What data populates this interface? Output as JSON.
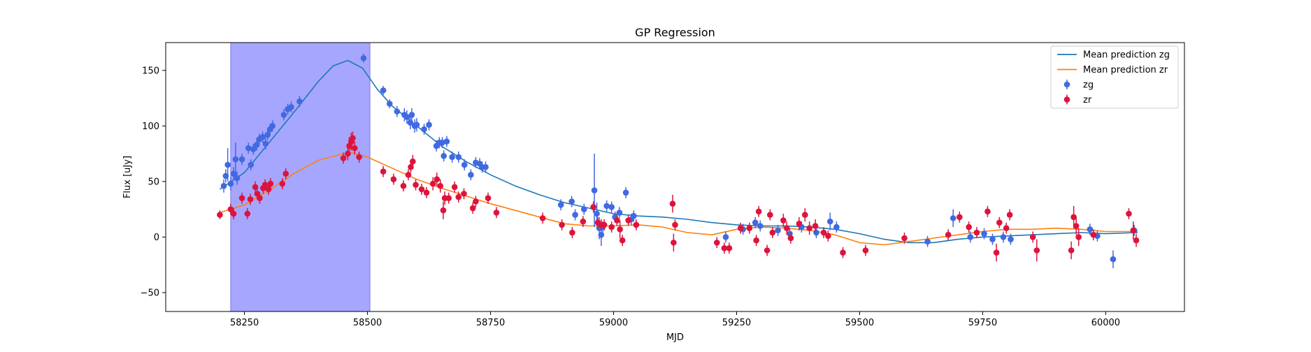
{
  "chart_data": {
    "type": "scatter",
    "title": "GP Regression",
    "xlabel": "MJD",
    "ylabel": "Flux [uJy]",
    "xlim": [
      58090,
      60160
    ],
    "ylim": [
      -67,
      175
    ],
    "xticks": [
      58250,
      58500,
      58750,
      59000,
      59250,
      59500,
      59750,
      60000
    ],
    "yticks": [
      -50,
      0,
      50,
      100,
      150
    ],
    "grid": false,
    "legend_position": "top-right",
    "highlight_band": {
      "x_start": 58222,
      "x_end": 58505,
      "color": "#a6a6ff"
    },
    "colors": {
      "zg_points": "#4169e1",
      "zr_points": "#dc143c",
      "zg_line": "#1f77b4",
      "zr_line": "#ff7f0e"
    },
    "series": [
      {
        "name": "Mean prediction zg",
        "kind": "line",
        "points": [
          [
            58200,
            43
          ],
          [
            58250,
            58
          ],
          [
            58300,
            85
          ],
          [
            58350,
            112
          ],
          [
            58400,
            140
          ],
          [
            58430,
            154
          ],
          [
            58460,
            159
          ],
          [
            58490,
            152
          ],
          [
            58520,
            133
          ],
          [
            58550,
            118
          ],
          [
            58600,
            100
          ],
          [
            58650,
            82
          ],
          [
            58700,
            68
          ],
          [
            58750,
            56
          ],
          [
            58800,
            46
          ],
          [
            58850,
            38
          ],
          [
            58900,
            31
          ],
          [
            58950,
            26
          ],
          [
            59000,
            21
          ],
          [
            59050,
            19
          ],
          [
            59100,
            18
          ],
          [
            59150,
            16
          ],
          [
            59200,
            13
          ],
          [
            59250,
            11
          ],
          [
            59300,
            10
          ],
          [
            59350,
            10
          ],
          [
            59400,
            9
          ],
          [
            59450,
            7
          ],
          [
            59500,
            3
          ],
          [
            59550,
            -2
          ],
          [
            59600,
            -5
          ],
          [
            59650,
            -5
          ],
          [
            59700,
            -2
          ],
          [
            59750,
            0
          ],
          [
            59800,
            1
          ],
          [
            59850,
            2
          ],
          [
            59900,
            3
          ],
          [
            59950,
            4
          ],
          [
            60000,
            3
          ],
          [
            60065,
            4
          ]
        ]
      },
      {
        "name": "Mean prediction zr",
        "kind": "line",
        "points": [
          [
            58200,
            22
          ],
          [
            58250,
            29
          ],
          [
            58300,
            42
          ],
          [
            58350,
            57
          ],
          [
            58400,
            69
          ],
          [
            58450,
            75
          ],
          [
            58470,
            76
          ],
          [
            58500,
            72
          ],
          [
            58550,
            62
          ],
          [
            58600,
            52
          ],
          [
            58650,
            44
          ],
          [
            58700,
            37
          ],
          [
            58750,
            30
          ],
          [
            58800,
            24
          ],
          [
            58850,
            18
          ],
          [
            58900,
            12
          ],
          [
            58950,
            10
          ],
          [
            59000,
            10
          ],
          [
            59050,
            11
          ],
          [
            59100,
            9
          ],
          [
            59150,
            4
          ],
          [
            59200,
            2
          ],
          [
            59250,
            7
          ],
          [
            59300,
            9
          ],
          [
            59350,
            8
          ],
          [
            59400,
            6
          ],
          [
            59450,
            2
          ],
          [
            59500,
            -5
          ],
          [
            59550,
            -7
          ],
          [
            59600,
            -4
          ],
          [
            59650,
            -1
          ],
          [
            59700,
            2
          ],
          [
            59750,
            5
          ],
          [
            59800,
            7
          ],
          [
            59850,
            7
          ],
          [
            59900,
            8
          ],
          [
            59950,
            7
          ],
          [
            60000,
            5
          ],
          [
            60065,
            5
          ]
        ]
      },
      {
        "name": "zg",
        "kind": "scatter",
        "points": [
          [
            58208,
            46,
            6
          ],
          [
            58212,
            55,
            6
          ],
          [
            58216,
            65,
            15
          ],
          [
            58222,
            48,
            6
          ],
          [
            58228,
            57,
            6
          ],
          [
            58232,
            70,
            15
          ],
          [
            58235,
            53,
            6
          ],
          [
            58245,
            70,
            5
          ],
          [
            58258,
            80,
            5
          ],
          [
            58263,
            65,
            5
          ],
          [
            58268,
            79,
            5
          ],
          [
            58275,
            83,
            5
          ],
          [
            58280,
            88,
            5
          ],
          [
            58287,
            90,
            5
          ],
          [
            58293,
            84,
            5
          ],
          [
            58297,
            92,
            5
          ],
          [
            58302,
            97,
            5
          ],
          [
            58307,
            100,
            5
          ],
          [
            58330,
            110,
            5
          ],
          [
            58338,
            115,
            5
          ],
          [
            58345,
            117,
            5
          ],
          [
            58362,
            122,
            5
          ],
          [
            58492,
            161,
            4
          ],
          [
            58532,
            132,
            4
          ],
          [
            58545,
            120,
            4
          ],
          [
            58560,
            113,
            5
          ],
          [
            58575,
            110,
            6
          ],
          [
            58580,
            108,
            6
          ],
          [
            58587,
            103,
            6
          ],
          [
            58590,
            110,
            6
          ],
          [
            58596,
            100,
            6
          ],
          [
            58600,
            101,
            6
          ],
          [
            58615,
            97,
            5
          ],
          [
            58625,
            101,
            5
          ],
          [
            58640,
            82,
            5
          ],
          [
            58646,
            85,
            5
          ],
          [
            58652,
            85,
            5
          ],
          [
            58661,
            86,
            5
          ],
          [
            58655,
            73,
            5
          ],
          [
            58672,
            72,
            5
          ],
          [
            58685,
            72,
            5
          ],
          [
            58697,
            65,
            5
          ],
          [
            58710,
            56,
            5
          ],
          [
            58720,
            67,
            5
          ],
          [
            58728,
            66,
            5
          ],
          [
            58733,
            63,
            5
          ],
          [
            58740,
            63,
            5
          ],
          [
            58893,
            29,
            5
          ],
          [
            58915,
            32,
            5
          ],
          [
            58922,
            20,
            5
          ],
          [
            58940,
            25,
            5
          ],
          [
            58961,
            42,
            33
          ],
          [
            58966,
            21,
            10
          ],
          [
            58971,
            8,
            10
          ],
          [
            58975,
            2,
            10
          ],
          [
            58978,
            9,
            5
          ],
          [
            58986,
            28,
            5
          ],
          [
            58996,
            27,
            5
          ],
          [
            59003,
            18,
            5
          ],
          [
            59012,
            22,
            5
          ],
          [
            59025,
            40,
            5
          ],
          [
            59036,
            16,
            5
          ],
          [
            59041,
            19,
            5
          ],
          [
            59228,
            0,
            5
          ],
          [
            59263,
            7,
            5
          ],
          [
            59288,
            13,
            5
          ],
          [
            59298,
            10,
            5
          ],
          [
            59334,
            6,
            5
          ],
          [
            59358,
            3,
            5
          ],
          [
            59382,
            9,
            5
          ],
          [
            59412,
            4,
            5
          ],
          [
            59440,
            14,
            8
          ],
          [
            59453,
            9,
            5
          ],
          [
            59638,
            -4,
            5
          ],
          [
            59690,
            17,
            8
          ],
          [
            59725,
            0,
            5
          ],
          [
            59753,
            3,
            5
          ],
          [
            59770,
            -2,
            5
          ],
          [
            59792,
            0,
            5
          ],
          [
            59807,
            -2,
            5
          ],
          [
            59968,
            7,
            5
          ],
          [
            59983,
            1,
            5
          ],
          [
            60015,
            -20,
            8
          ],
          [
            60058,
            6,
            5
          ]
        ]
      },
      {
        "name": "zr",
        "kind": "scatter",
        "points": [
          [
            58200,
            20,
            4
          ],
          [
            58222,
            25,
            5
          ],
          [
            58228,
            21,
            5
          ],
          [
            58245,
            35,
            5
          ],
          [
            58256,
            21,
            5
          ],
          [
            58262,
            34,
            5
          ],
          [
            58272,
            45,
            5
          ],
          [
            58276,
            39,
            5
          ],
          [
            58281,
            35,
            5
          ],
          [
            58288,
            44,
            5
          ],
          [
            58292,
            47,
            5
          ],
          [
            58299,
            43,
            5
          ],
          [
            58303,
            48,
            5
          ],
          [
            58327,
            48,
            5
          ],
          [
            58334,
            57,
            5
          ],
          [
            58451,
            71,
            5
          ],
          [
            58460,
            75,
            6
          ],
          [
            58463,
            82,
            8
          ],
          [
            58467,
            86,
            8
          ],
          [
            58470,
            89,
            6
          ],
          [
            58474,
            80,
            6
          ],
          [
            58483,
            72,
            5
          ],
          [
            58532,
            59,
            5
          ],
          [
            58553,
            52,
            5
          ],
          [
            58573,
            46,
            5
          ],
          [
            58583,
            56,
            5
          ],
          [
            58588,
            63,
            5
          ],
          [
            58592,
            68,
            6
          ],
          [
            58598,
            47,
            5
          ],
          [
            58610,
            43,
            5
          ],
          [
            58620,
            40,
            5
          ],
          [
            58633,
            48,
            6
          ],
          [
            58641,
            52,
            6
          ],
          [
            58648,
            46,
            6
          ],
          [
            58654,
            24,
            8
          ],
          [
            58657,
            35,
            6
          ],
          [
            58665,
            35,
            5
          ],
          [
            58677,
            45,
            5
          ],
          [
            58685,
            36,
            5
          ],
          [
            58696,
            39,
            5
          ],
          [
            58714,
            26,
            5
          ],
          [
            58720,
            32,
            5
          ],
          [
            58745,
            35,
            5
          ],
          [
            58762,
            22,
            5
          ],
          [
            58856,
            17,
            5
          ],
          [
            58895,
            11,
            5
          ],
          [
            58916,
            4,
            5
          ],
          [
            58938,
            14,
            5
          ],
          [
            58959,
            27,
            5
          ],
          [
            58968,
            13,
            5
          ],
          [
            58975,
            11,
            5
          ],
          [
            58981,
            11,
            5
          ],
          [
            58996,
            9,
            5
          ],
          [
            59007,
            15,
            5
          ],
          [
            59013,
            7,
            8
          ],
          [
            59018,
            -3,
            5
          ],
          [
            59030,
            15,
            5
          ],
          [
            59046,
            11,
            5
          ],
          [
            59120,
            30,
            8
          ],
          [
            59125,
            11,
            5
          ],
          [
            59122,
            -5,
            8
          ],
          [
            59210,
            -5,
            5
          ],
          [
            59225,
            -10,
            5
          ],
          [
            59235,
            -10,
            5
          ],
          [
            59258,
            8,
            5
          ],
          [
            59276,
            8,
            5
          ],
          [
            59290,
            -3,
            5
          ],
          [
            59295,
            23,
            5
          ],
          [
            59312,
            -12,
            5
          ],
          [
            59318,
            20,
            5
          ],
          [
            59323,
            4,
            5
          ],
          [
            59345,
            15,
            6
          ],
          [
            59352,
            8,
            6
          ],
          [
            59360,
            -1,
            5
          ],
          [
            59377,
            12,
            6
          ],
          [
            59389,
            20,
            6
          ],
          [
            59398,
            8,
            6
          ],
          [
            59410,
            10,
            6
          ],
          [
            59427,
            4,
            5
          ],
          [
            59436,
            1,
            5
          ],
          [
            59466,
            -14,
            5
          ],
          [
            59512,
            -12,
            5
          ],
          [
            59591,
            -1,
            5
          ],
          [
            59680,
            2,
            5
          ],
          [
            59703,
            18,
            5
          ],
          [
            59722,
            9,
            5
          ],
          [
            59738,
            4,
            5
          ],
          [
            59760,
            23,
            5
          ],
          [
            59778,
            -14,
            8
          ],
          [
            59784,
            13,
            5
          ],
          [
            59798,
            8,
            5
          ],
          [
            59805,
            20,
            5
          ],
          [
            59852,
            0,
            5
          ],
          [
            59860,
            -12,
            10
          ],
          [
            59930,
            -12,
            8
          ],
          [
            59935,
            18,
            10
          ],
          [
            59940,
            10,
            8
          ],
          [
            59945,
            0,
            8
          ],
          [
            59975,
            2,
            5
          ],
          [
            60047,
            21,
            5
          ],
          [
            60056,
            6,
            8
          ],
          [
            60062,
            -3,
            6
          ]
        ]
      }
    ]
  }
}
